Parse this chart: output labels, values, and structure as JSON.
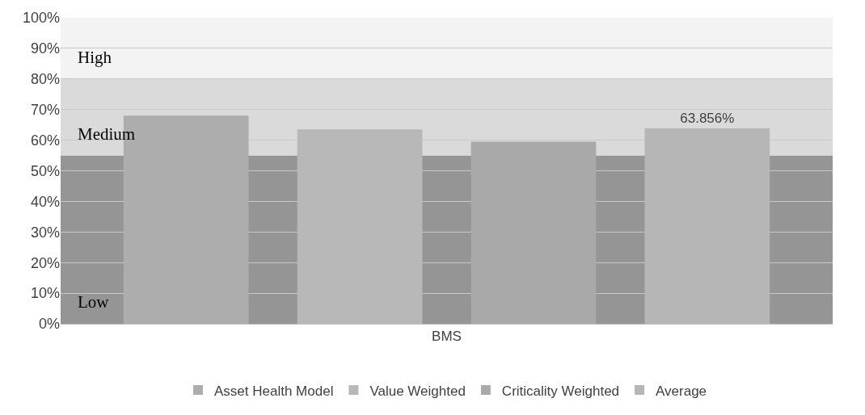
{
  "chart_data": {
    "type": "bar",
    "categories": [
      "BMS"
    ],
    "series": [
      {
        "name": "Asset Health Model",
        "color": "#adadad",
        "values": [
          68
        ]
      },
      {
        "name": "Value Weighted",
        "color": "#b8b8b8",
        "values": [
          63.5
        ]
      },
      {
        "name": "Criticality Weighted",
        "color": "#a9a9a9",
        "values": [
          59.5
        ]
      },
      {
        "name": "Average",
        "color": "#b6b6b6",
        "values": [
          63.856
        ],
        "value_labels": [
          "63.856%"
        ]
      }
    ],
    "ylim": [
      0,
      100
    ],
    "yticks": [
      {
        "value": 0,
        "label": "0%"
      },
      {
        "value": 10,
        "label": "10%"
      },
      {
        "value": 20,
        "label": "20%"
      },
      {
        "value": 30,
        "label": "30%"
      },
      {
        "value": 40,
        "label": "40%"
      },
      {
        "value": 50,
        "label": "50%"
      },
      {
        "value": 60,
        "label": "60%"
      },
      {
        "value": 70,
        "label": "70%"
      },
      {
        "value": 80,
        "label": "80%"
      },
      {
        "value": 90,
        "label": "90%"
      },
      {
        "value": 100,
        "label": "100%"
      }
    ],
    "bands": [
      {
        "axis": "y",
        "from": 0,
        "to": 55,
        "label": "Low",
        "color": "#959595"
      },
      {
        "axis": "y",
        "from": 55,
        "to": 80,
        "label": "Medium",
        "color": "#dadada"
      },
      {
        "axis": "y",
        "from": 80,
        "to": 100,
        "label": "High",
        "color": "#f3f3f3"
      }
    ],
    "grid": "y",
    "legend": "bottom"
  }
}
